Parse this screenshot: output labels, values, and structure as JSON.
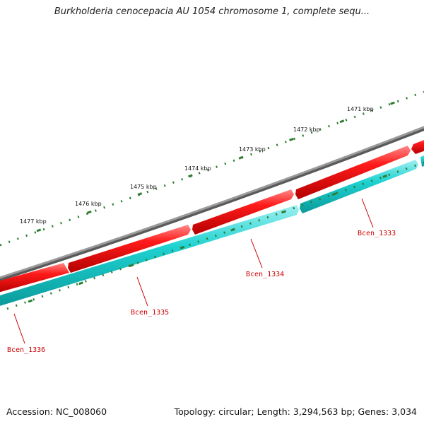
{
  "title": "Burkholderia cenocepacia AU 1054 chromosome 1, complete sequ...",
  "footer": {
    "accession": "Accession: NC_008060",
    "summary": "Topology: circular; Length: 3,294,563 bp; Genes: 3,034"
  },
  "colors": {
    "backbone": "#8c8c8c",
    "forward_gene": "#ff1a1a",
    "reverse_gene": "#1fd2d2",
    "tick": "#2e7d32",
    "gene_label": "#cc0000"
  },
  "kbp_labels": [
    "1471 kbp",
    "1472 kbp",
    "1473 kbp",
    "1474 kbp",
    "1475 kbp",
    "1476 kbp",
    "1477 kbp"
  ],
  "gene_labels": [
    "Bcen_1333",
    "Bcen_1334",
    "Bcen_1335",
    "Bcen_1336"
  ]
}
